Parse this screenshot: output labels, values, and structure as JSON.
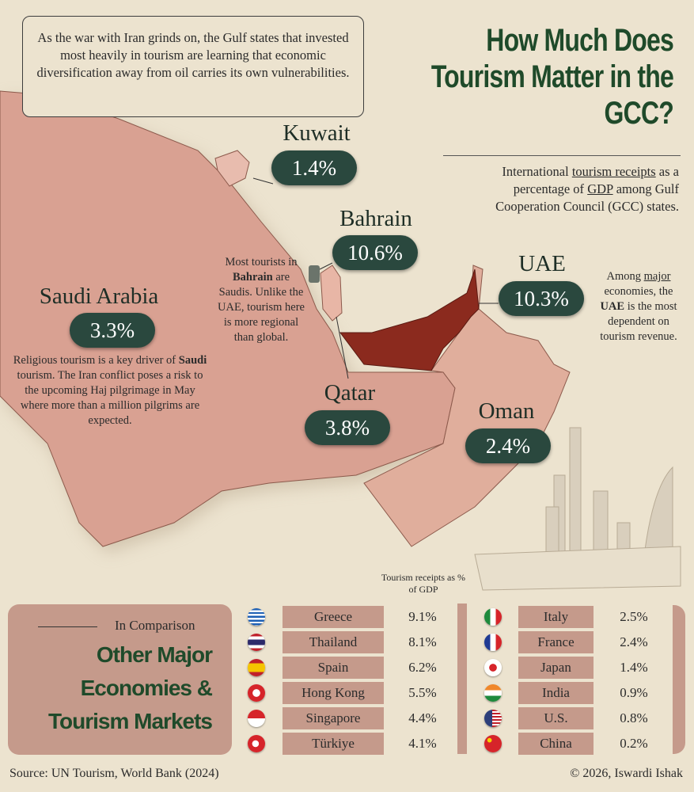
{
  "intro": "As the war with Iran grinds on, the Gulf states that invested most heavily in tourism are learning that economic diversification away from oil carries its own vulnerabilities.",
  "title": "How Much Does Tourism Matter in the GCC?",
  "subtitle": {
    "pre": "International ",
    "link1": "tourism receipts",
    "mid": " as a percentage of ",
    "link2": "GDP",
    "post": " among Gulf Cooperation Council (GCC) states."
  },
  "countries": {
    "kuwait": {
      "name": "Kuwait",
      "value": "1.4%"
    },
    "bahrain": {
      "name": "Bahrain",
      "value": "10.6%"
    },
    "uae": {
      "name": "UAE",
      "value": "10.3%"
    },
    "saudi": {
      "name": "Saudi Arabia",
      "value": "3.3%"
    },
    "qatar": {
      "name": "Qatar",
      "value": "3.8%"
    },
    "oman": {
      "name": "Oman",
      "value": "2.4%"
    }
  },
  "notes": {
    "bahrain": {
      "a": "Most tourists in ",
      "b": "Bahrain",
      "c": " are Saudis. Unlike the UAE, tourism here is more regional than global."
    },
    "uae": {
      "a": "Among ",
      "b": "major",
      "c": " economies, the ",
      "d": "UAE",
      "e": " is the most dependent on tourism revenue."
    },
    "saudi": {
      "a": "Religious tourism is a key driver of ",
      "b": "Saudi",
      "c": " tourism. The Iran conflict poses a risk to the upcoming Haj pilgrimage in May where more than a million pilgrims are expected."
    }
  },
  "comparison": {
    "kicker": "In Comparison",
    "title": "Other Major Economies & Tourism Markets",
    "column_header": "Tourism receipts as % of GDP",
    "left": [
      {
        "country": "Greece",
        "value": "9.1%",
        "flag": "greece-flag"
      },
      {
        "country": "Thailand",
        "value": "8.1%",
        "flag": "thailand-flag"
      },
      {
        "country": "Spain",
        "value": "6.2%",
        "flag": "spain-flag"
      },
      {
        "country": "Hong Kong",
        "value": "5.5%",
        "flag": "hong-kong-flag"
      },
      {
        "country": "Singapore",
        "value": "4.4%",
        "flag": "singapore-flag"
      },
      {
        "country": "Türkiye",
        "value": "4.1%",
        "flag": "turkiye-flag"
      }
    ],
    "right": [
      {
        "country": "Italy",
        "value": "2.5%",
        "flag": "italy-flag"
      },
      {
        "country": "France",
        "value": "2.4%",
        "flag": "france-flag"
      },
      {
        "country": "Japan",
        "value": "1.4%",
        "flag": "japan-flag"
      },
      {
        "country": "India",
        "value": "0.9%",
        "flag": "india-flag"
      },
      {
        "country": "U.S.",
        "value": "0.8%",
        "flag": "us-flag"
      },
      {
        "country": "China",
        "value": "0.2%",
        "flag": "china-flag"
      }
    ]
  },
  "source": "Source: UN Tourism, World Bank (2024)",
  "credit": "© 2026, Iswardi Ishak",
  "colors": {
    "title_green": "#1f4a2a",
    "pill": "#2a483e",
    "uae": "#8b2a1e",
    "land": "#d9a192",
    "oman": "#e0ae9c",
    "panel": "#c59a8b",
    "background": "#ece3cf"
  }
}
